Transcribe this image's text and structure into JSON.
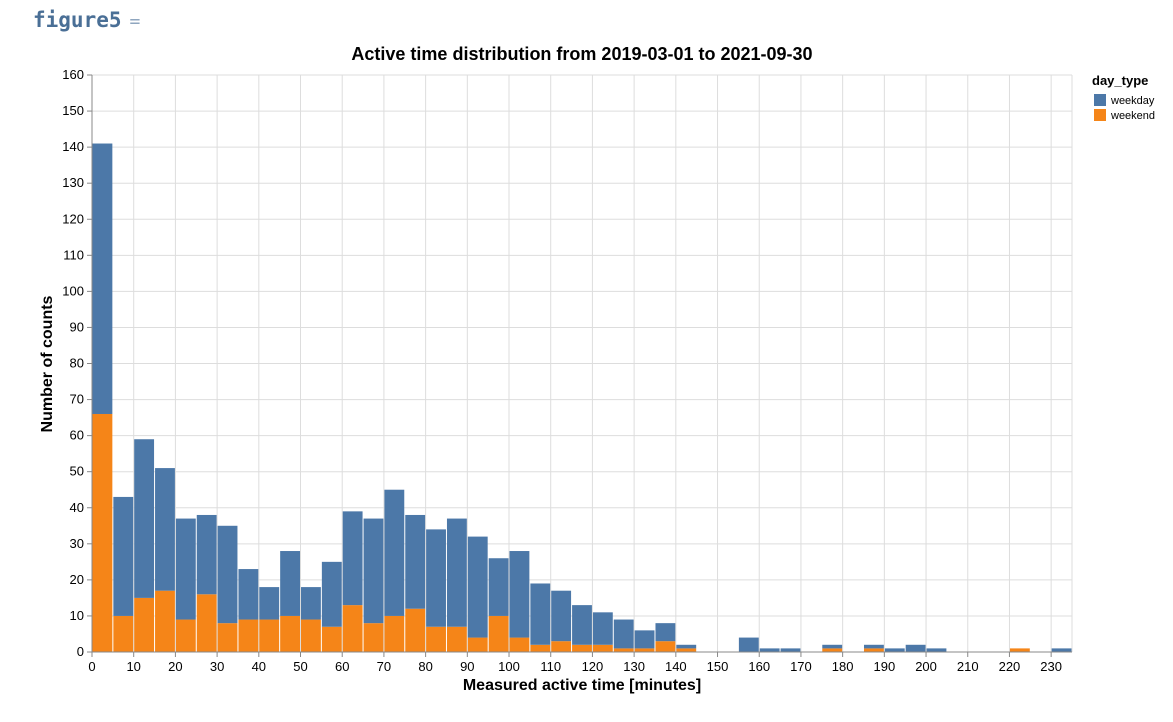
{
  "cell": {
    "name": "figure5",
    "eq": "="
  },
  "chart_data": {
    "type": "bar",
    "stacked": true,
    "title": "Active time distribution from 2019-03-01 to 2021-09-30",
    "xlabel": "Measured active time [minutes]",
    "ylabel": "Number of counts",
    "xlim": [
      0,
      235
    ],
    "ylim": [
      0,
      160
    ],
    "bin_width": 5,
    "x_ticks": [
      0,
      10,
      20,
      30,
      40,
      50,
      60,
      70,
      80,
      90,
      100,
      110,
      120,
      130,
      140,
      150,
      160,
      170,
      180,
      190,
      200,
      210,
      220,
      230
    ],
    "y_ticks": [
      0,
      10,
      20,
      30,
      40,
      50,
      60,
      70,
      80,
      90,
      100,
      110,
      120,
      130,
      140,
      150,
      160
    ],
    "grid": true,
    "legend": {
      "title": "day_type",
      "position": "right"
    },
    "bin_starts": [
      0,
      5,
      10,
      15,
      20,
      25,
      30,
      35,
      40,
      45,
      50,
      55,
      60,
      65,
      70,
      75,
      80,
      85,
      90,
      95,
      100,
      105,
      110,
      115,
      120,
      125,
      130,
      135,
      140,
      145,
      150,
      155,
      160,
      165,
      170,
      175,
      180,
      185,
      190,
      195,
      200,
      205,
      210,
      215,
      220,
      225,
      230
    ],
    "series": [
      {
        "name": "weekend",
        "color": "#f58518",
        "values": [
          66,
          10,
          15,
          17,
          9,
          16,
          8,
          9,
          9,
          10,
          9,
          7,
          13,
          8,
          10,
          12,
          7,
          7,
          4,
          10,
          4,
          2,
          3,
          2,
          2,
          1,
          1,
          3,
          1,
          0,
          0,
          0,
          0,
          0,
          0,
          1,
          0,
          1,
          0,
          0,
          0,
          0,
          0,
          0,
          1,
          0,
          0
        ]
      },
      {
        "name": "weekday",
        "color": "#4c78a8",
        "values": [
          75,
          33,
          44,
          34,
          28,
          22,
          27,
          14,
          9,
          18,
          9,
          18,
          26,
          29,
          35,
          26,
          27,
          30,
          28,
          16,
          24,
          17,
          14,
          11,
          9,
          8,
          5,
          5,
          1,
          0,
          0,
          4,
          1,
          1,
          0,
          1,
          0,
          1,
          1,
          2,
          1,
          0,
          0,
          0,
          0,
          0,
          1
        ]
      }
    ]
  }
}
